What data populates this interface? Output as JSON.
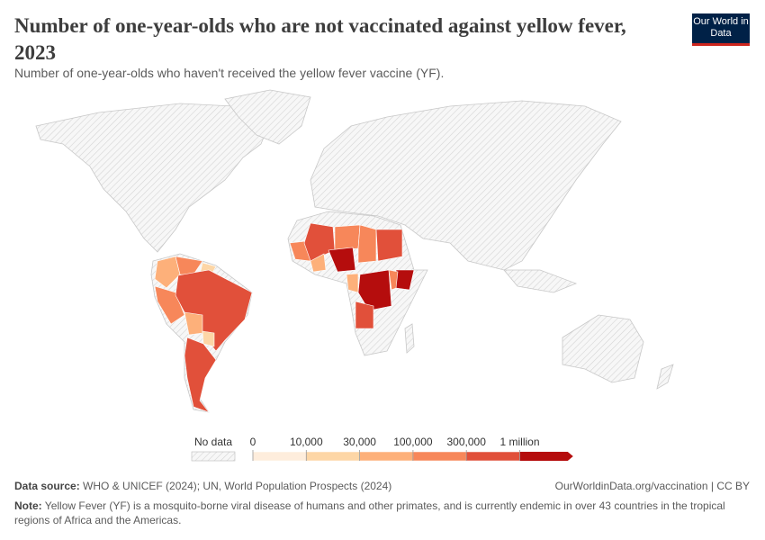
{
  "header": {
    "title": "Number of one-year-olds who are not vaccinated against yellow fever, 2023",
    "subtitle": "Number of one-year-olds who haven't received the yellow fever vaccine (YF).",
    "logo": "Our World in Data"
  },
  "legend": {
    "no_data": "No data",
    "ticks": [
      0,
      {
        "value": 10000,
        "label": "10,000"
      },
      {
        "value": 30000,
        "label": "30,000"
      },
      {
        "value": 100000,
        "label": "100,000"
      },
      {
        "value": 300000,
        "label": "300,000"
      },
      {
        "value": 1000000,
        "label": "1 million"
      }
    ],
    "colors": [
      "#feeddc",
      "#fdd6a6",
      "#fdb07a",
      "#f7875a",
      "#e1503a",
      "#b50d0d"
    ]
  },
  "footer": {
    "source_label": "Data source:",
    "source": "WHO & UNICEF (2024); UN, World Population Prospects (2024)",
    "url": "OurWorldinData.org/vaccination | CC BY",
    "note_label": "Note:",
    "note": "Yellow Fever (YF) is a mosquito-borne viral disease of humans and other primates, and is currently endemic in over 43 countries in the tropical regions of Africa and the Americas."
  }
}
